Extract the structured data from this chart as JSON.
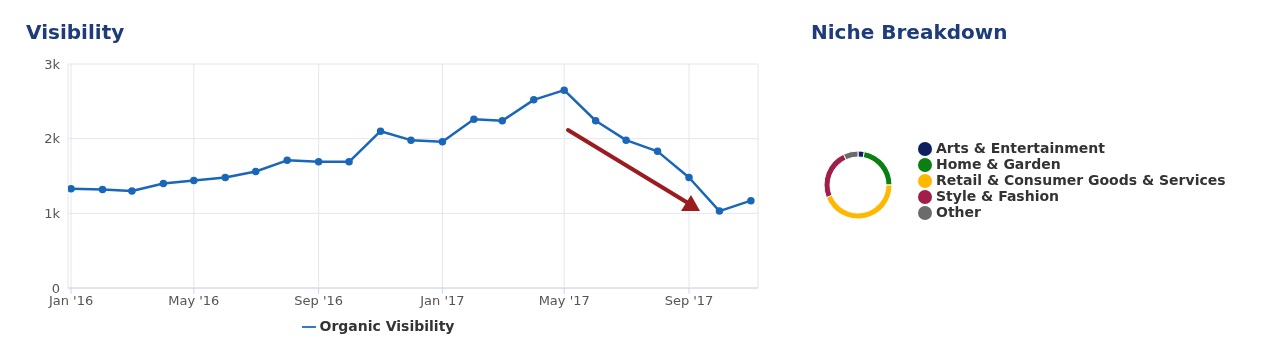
{
  "chart_data": [
    {
      "type": "line",
      "title": "Visibility",
      "x": [
        "2016-01",
        "2016-02",
        "2016-03",
        "2016-04",
        "2016-05",
        "2016-06",
        "2016-07",
        "2016-08",
        "2016-09",
        "2016-10",
        "2016-11",
        "2016-12",
        "2017-01",
        "2017-02",
        "2017-03",
        "2017-04",
        "2017-05",
        "2017-06",
        "2017-07",
        "2017-08",
        "2017-09",
        "2017-10",
        "2017-11"
      ],
      "series": [
        {
          "name": "Organic Visibility",
          "color": "#1a66b8",
          "values": [
            1330,
            1320,
            1300,
            1400,
            1440,
            1480,
            1560,
            1710,
            1690,
            1690,
            2100,
            1980,
            1960,
            2260,
            2240,
            2520,
            2650,
            2240,
            1980,
            1830,
            1480,
            1030,
            1170
          ]
        }
      ],
      "xlim": [
        "2015-12-29",
        "2017-11-08"
      ],
      "xticks": [
        {
          "value": "2016-01",
          "label": "Jan '16"
        },
        {
          "value": "2016-05",
          "label": "May '16"
        },
        {
          "value": "2016-09",
          "label": "Sep '16"
        },
        {
          "value": "2017-01",
          "label": "Jan '17"
        },
        {
          "value": "2017-05",
          "label": "May '17"
        },
        {
          "value": "2017-09",
          "label": "Sep '17"
        }
      ],
      "ylim": [
        0,
        3000
      ],
      "yticks": [
        0,
        {
          "value": 1000,
          "label": "1k"
        },
        {
          "value": 2000,
          "label": "2k"
        },
        {
          "value": 3000,
          "label": "3k"
        }
      ],
      "grid": true,
      "legend": "bottom",
      "marker": "circle",
      "line_style": "solid"
    },
    {
      "type": "donut",
      "title": "Niche Breakdown",
      "categories": [
        "Arts & Entertainment",
        "Home & Garden",
        "Retail & Consumer Goods & Services",
        "Style & Fashion",
        "Other"
      ],
      "values": [
        3,
        22,
        44,
        24,
        7
      ],
      "colors": [
        "#0d1f5c",
        "#0a7f12",
        "#ffb800",
        "#a01e4a",
        "#6b6b6b"
      ],
      "legend": "right"
    }
  ]
}
